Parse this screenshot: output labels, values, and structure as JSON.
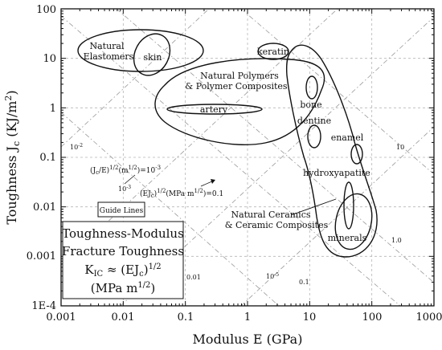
{
  "chart_data": {
    "type": "ashby-property-chart",
    "xlabel": "Modulus E (GPa)",
    "ylabel_main": "Toughness J",
    "ylabel_sub": "c",
    "ylabel_units": "(KJ/m",
    "ylabel_units_sup": "2",
    "ylabel_units_close": ")",
    "x_scale": "log",
    "y_scale": "log",
    "xlim": [
      0.001,
      1000
    ],
    "ylim": [
      0.0001,
      100
    ],
    "x_tick_labels": [
      "0.001",
      "0.01",
      "0.1",
      "1",
      "10",
      "100",
      "1000"
    ],
    "y_tick_labels": [
      "1E-4",
      "0.001",
      "0.01",
      "0.1",
      "1",
      "10",
      "100"
    ],
    "grid": true,
    "guide_lines": {
      "family_1_label": "(J",
      "family_1_label_sub": "c",
      "family_1_label_mid": "/E)",
      "family_1_label_exp": "1/2",
      "family_1_label_units": "(m",
      "family_1_label_units_exp": "1/2",
      "family_1_label_value": ")=10",
      "family_1_label_value_exp": "-3",
      "family_2_label": "(EJ",
      "family_2_label_sub": "c",
      "family_2_label_mid": ")",
      "family_2_label_exp": "1/2",
      "family_2_label_units": "(MPa m",
      "family_2_label_units_exp": "1/2",
      "family_2_label_value": ")=0.1",
      "line_values_left": [
        "10",
        "10"
      ],
      "line_values_left_exp": [
        "-2",
        "-3"
      ],
      "line_values_bottom": [
        "0.01",
        "10",
        "0.1"
      ],
      "line_values_bottom_exp": [
        "",
        "-5",
        ""
      ],
      "line_values_right": [
        "10",
        "1.0"
      ]
    },
    "regions": [
      {
        "name": "Natural Elastomers",
        "label_lines": [
          "Natural",
          "Elastomers"
        ]
      },
      {
        "name": "skin"
      },
      {
        "name": "keratin"
      },
      {
        "name": "Natural Polymers & Polymer Composites",
        "label_lines": [
          "Natural Polymers",
          "& Polymer Composites"
        ]
      },
      {
        "name": "artery"
      },
      {
        "name": "bone"
      },
      {
        "name": "dentine"
      },
      {
        "name": "enamel"
      },
      {
        "name": "hydroxyapatite"
      },
      {
        "name": "Natural Ceramics & Ceramic Composites",
        "label_lines": [
          "Natural Ceramics",
          "& Ceramic Composites"
        ]
      },
      {
        "name": "minerals"
      }
    ],
    "guide_lines_box": "Guide Lines",
    "legend_box": {
      "line1": "Toughness-Modulus",
      "line2": "Fracture Toughness",
      "line3_main": "K",
      "line3_sub": "IC",
      "line3_mid": " ≈ (EJ",
      "line3_sub2": "c",
      "line3_close": ")",
      "line3_exp": "1/2",
      "line4_main": "(MPa m",
      "line4_exp": "1/2",
      "line4_close": ")"
    }
  }
}
